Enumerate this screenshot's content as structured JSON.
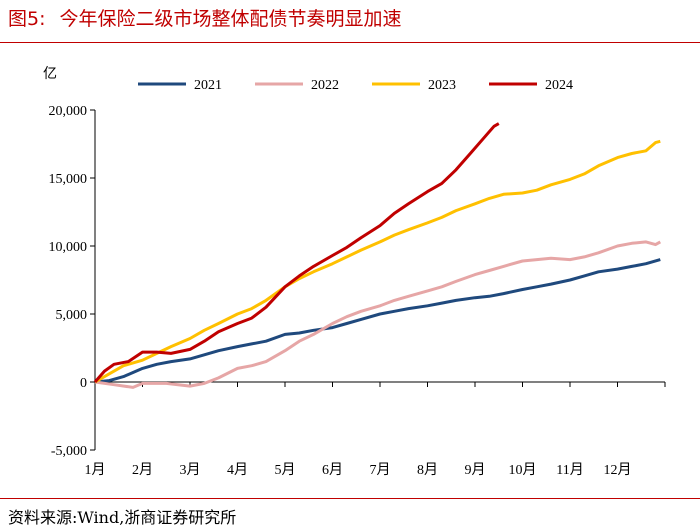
{
  "figure": {
    "label": "图5:",
    "title": "今年保险二级市场整体配债节奏明显加速",
    "source": "资料来源:Wind,浙商证券研究所"
  },
  "colors": {
    "title": "#c00000",
    "s2021": "#1f497d",
    "s2022": "#e6a6a6",
    "s2023": "#ffc000",
    "s2024": "#c00000"
  },
  "chart_data": {
    "type": "line",
    "ylabel": "亿",
    "ylim": [
      -5000,
      20000
    ],
    "yticks": [
      -5000,
      0,
      5000,
      10000,
      15000,
      20000
    ],
    "ytick_labels": [
      "-5,000",
      "0",
      "5,000",
      "10,000",
      "15,000",
      "20,000"
    ],
    "xlim": [
      1,
      13
    ],
    "xticks": [
      1,
      2,
      3,
      4,
      5,
      6,
      7,
      8,
      9,
      10,
      11,
      12
    ],
    "xtick_labels": [
      "1月",
      "2月",
      "3月",
      "4月",
      "5月",
      "6月",
      "7月",
      "8月",
      "9月",
      "10月",
      "11月",
      "12月"
    ],
    "legend_position": "top",
    "grid": false,
    "series": [
      {
        "name": "2021",
        "color": "#1f497d",
        "points": [
          [
            1.0,
            0
          ],
          [
            1.3,
            100
          ],
          [
            1.6,
            400
          ],
          [
            1.8,
            700
          ],
          [
            2.0,
            1000
          ],
          [
            2.3,
            1300
          ],
          [
            2.6,
            1500
          ],
          [
            3.0,
            1700
          ],
          [
            3.3,
            2000
          ],
          [
            3.6,
            2300
          ],
          [
            4.0,
            2600
          ],
          [
            4.3,
            2800
          ],
          [
            4.6,
            3000
          ],
          [
            5.0,
            3500
          ],
          [
            5.3,
            3600
          ],
          [
            5.6,
            3800
          ],
          [
            6.0,
            4000
          ],
          [
            6.3,
            4300
          ],
          [
            6.6,
            4600
          ],
          [
            7.0,
            5000
          ],
          [
            7.3,
            5200
          ],
          [
            7.6,
            5400
          ],
          [
            8.0,
            5600
          ],
          [
            8.3,
            5800
          ],
          [
            8.6,
            6000
          ],
          [
            9.0,
            6200
          ],
          [
            9.3,
            6300
          ],
          [
            9.6,
            6500
          ],
          [
            10.0,
            6800
          ],
          [
            10.3,
            7000
          ],
          [
            10.6,
            7200
          ],
          [
            11.0,
            7500
          ],
          [
            11.3,
            7800
          ],
          [
            11.6,
            8100
          ],
          [
            12.0,
            8300
          ],
          [
            12.3,
            8500
          ],
          [
            12.6,
            8700
          ],
          [
            12.9,
            9000
          ]
        ]
      },
      {
        "name": "2022",
        "color": "#e6a6a6",
        "points": [
          [
            1.0,
            0
          ],
          [
            1.4,
            -200
          ],
          [
            1.8,
            -400
          ],
          [
            2.0,
            -100
          ],
          [
            2.5,
            -100
          ],
          [
            3.0,
            -300
          ],
          [
            3.3,
            -100
          ],
          [
            3.6,
            300
          ],
          [
            4.0,
            1000
          ],
          [
            4.3,
            1200
          ],
          [
            4.6,
            1500
          ],
          [
            5.0,
            2300
          ],
          [
            5.3,
            3000
          ],
          [
            5.6,
            3500
          ],
          [
            6.0,
            4300
          ],
          [
            6.3,
            4800
          ],
          [
            6.6,
            5200
          ],
          [
            7.0,
            5600
          ],
          [
            7.3,
            6000
          ],
          [
            7.6,
            6300
          ],
          [
            8.0,
            6700
          ],
          [
            8.3,
            7000
          ],
          [
            8.6,
            7400
          ],
          [
            9.0,
            7900
          ],
          [
            9.3,
            8200
          ],
          [
            9.6,
            8500
          ],
          [
            10.0,
            8900
          ],
          [
            10.3,
            9000
          ],
          [
            10.6,
            9100
          ],
          [
            11.0,
            9000
          ],
          [
            11.3,
            9200
          ],
          [
            11.6,
            9500
          ],
          [
            12.0,
            10000
          ],
          [
            12.3,
            10200
          ],
          [
            12.6,
            10300
          ],
          [
            12.8,
            10100
          ],
          [
            12.9,
            10300
          ]
        ]
      },
      {
        "name": "2023",
        "color": "#ffc000",
        "points": [
          [
            1.0,
            0
          ],
          [
            1.3,
            600
          ],
          [
            1.6,
            1200
          ],
          [
            2.0,
            1600
          ],
          [
            2.3,
            2100
          ],
          [
            2.6,
            2600
          ],
          [
            3.0,
            3200
          ],
          [
            3.3,
            3800
          ],
          [
            3.6,
            4300
          ],
          [
            4.0,
            5000
          ],
          [
            4.3,
            5400
          ],
          [
            4.6,
            6000
          ],
          [
            5.0,
            7000
          ],
          [
            5.3,
            7600
          ],
          [
            5.6,
            8100
          ],
          [
            6.0,
            8700
          ],
          [
            6.3,
            9200
          ],
          [
            6.6,
            9700
          ],
          [
            7.0,
            10300
          ],
          [
            7.3,
            10800
          ],
          [
            7.6,
            11200
          ],
          [
            8.0,
            11700
          ],
          [
            8.3,
            12100
          ],
          [
            8.6,
            12600
          ],
          [
            9.0,
            13100
          ],
          [
            9.3,
            13500
          ],
          [
            9.6,
            13800
          ],
          [
            10.0,
            13900
          ],
          [
            10.3,
            14100
          ],
          [
            10.6,
            14500
          ],
          [
            11.0,
            14900
          ],
          [
            11.3,
            15300
          ],
          [
            11.6,
            15900
          ],
          [
            12.0,
            16500
          ],
          [
            12.3,
            16800
          ],
          [
            12.6,
            17000
          ],
          [
            12.8,
            17600
          ],
          [
            12.9,
            17700
          ]
        ]
      },
      {
        "name": "2024",
        "color": "#c00000",
        "points": [
          [
            1.0,
            0
          ],
          [
            1.2,
            800
          ],
          [
            1.4,
            1300
          ],
          [
            1.7,
            1500
          ],
          [
            2.0,
            2200
          ],
          [
            2.3,
            2200
          ],
          [
            2.6,
            2100
          ],
          [
            3.0,
            2400
          ],
          [
            3.3,
            3000
          ],
          [
            3.6,
            3700
          ],
          [
            4.0,
            4300
          ],
          [
            4.3,
            4700
          ],
          [
            4.6,
            5500
          ],
          [
            5.0,
            7000
          ],
          [
            5.3,
            7800
          ],
          [
            5.6,
            8500
          ],
          [
            6.0,
            9300
          ],
          [
            6.3,
            9900
          ],
          [
            6.6,
            10600
          ],
          [
            7.0,
            11500
          ],
          [
            7.3,
            12400
          ],
          [
            7.6,
            13100
          ],
          [
            8.0,
            14000
          ],
          [
            8.3,
            14600
          ],
          [
            8.6,
            15600
          ],
          [
            8.9,
            16800
          ],
          [
            9.2,
            18000
          ],
          [
            9.4,
            18800
          ],
          [
            9.5,
            19000
          ]
        ]
      }
    ]
  }
}
